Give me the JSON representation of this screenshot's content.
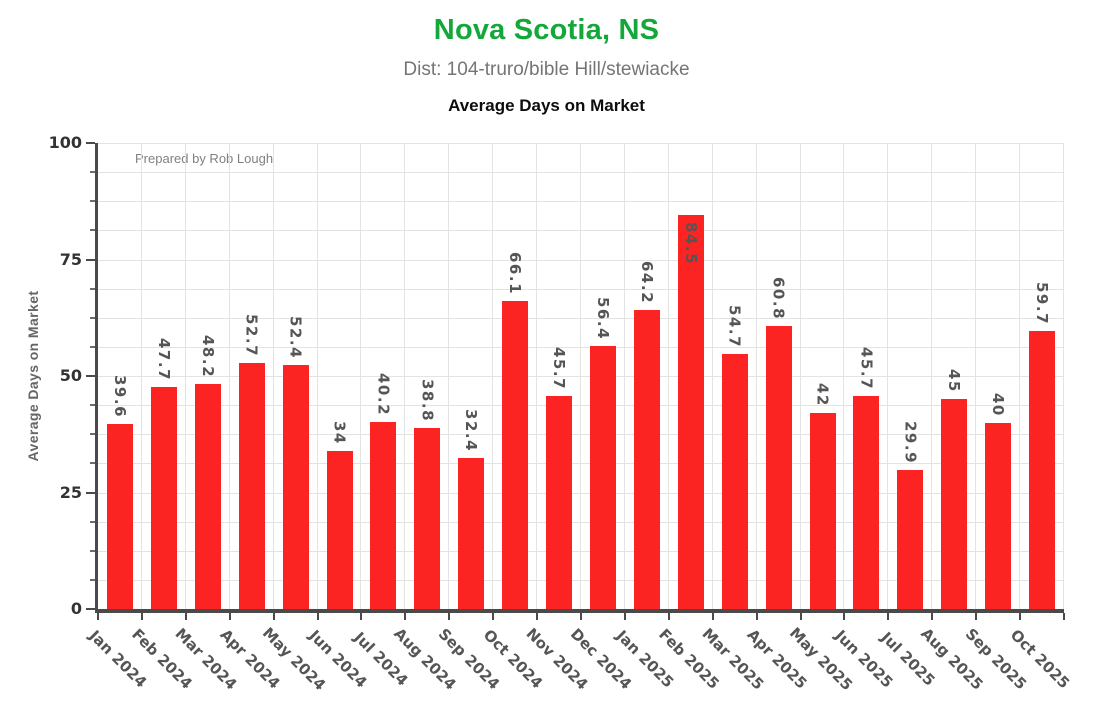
{
  "header": {
    "title": "Nova Scotia, NS",
    "subtitle": "Dist: 104-truro/bible Hill/stewiacke",
    "chart_title": "Average Days on Market"
  },
  "annotation": "Prepared by Rob Lough",
  "colors": {
    "title_green": "#14a73a",
    "bar_red": "#fc2323",
    "grid_gray": "#e3e3e3",
    "axis_gray": "#4a4a4a",
    "value_label_gray": "#555555",
    "ytick_label_dark": "#333333",
    "subtitle_gray": "#757575",
    "annotation_gray": "#818181",
    "axis_title_gray": "#666666"
  },
  "chart_data": {
    "type": "bar",
    "title": "Average Days on Market",
    "xlabel": "",
    "ylabel": "Average Days on Market",
    "ylim": [
      0,
      100
    ],
    "yticks": [
      0,
      25,
      50,
      75,
      100
    ],
    "minor_tick_step": 6.25,
    "grid": true,
    "legend": false,
    "bar_color": "#fc2323",
    "categories": [
      "Jan 2024",
      "Feb 2024",
      "Mar 2024",
      "Apr 2024",
      "May 2024",
      "Jun 2024",
      "Jul 2024",
      "Aug 2024",
      "Sep 2024",
      "Oct 2024",
      "Nov 2024",
      "Dec 2024",
      "Jan 2025",
      "Feb 2025",
      "Mar 2025",
      "Apr 2025",
      "May 2025",
      "Jun 2025",
      "Jul 2025",
      "Aug 2025",
      "Sep 2025",
      "Oct 2025"
    ],
    "values": [
      39.6,
      47.7,
      48.2,
      52.7,
      52.4,
      34,
      40.2,
      38.8,
      32.4,
      66.1,
      45.7,
      56.4,
      64.2,
      84.5,
      54.7,
      60.8,
      42,
      45.7,
      29.9,
      45,
      40,
      59.7
    ]
  }
}
